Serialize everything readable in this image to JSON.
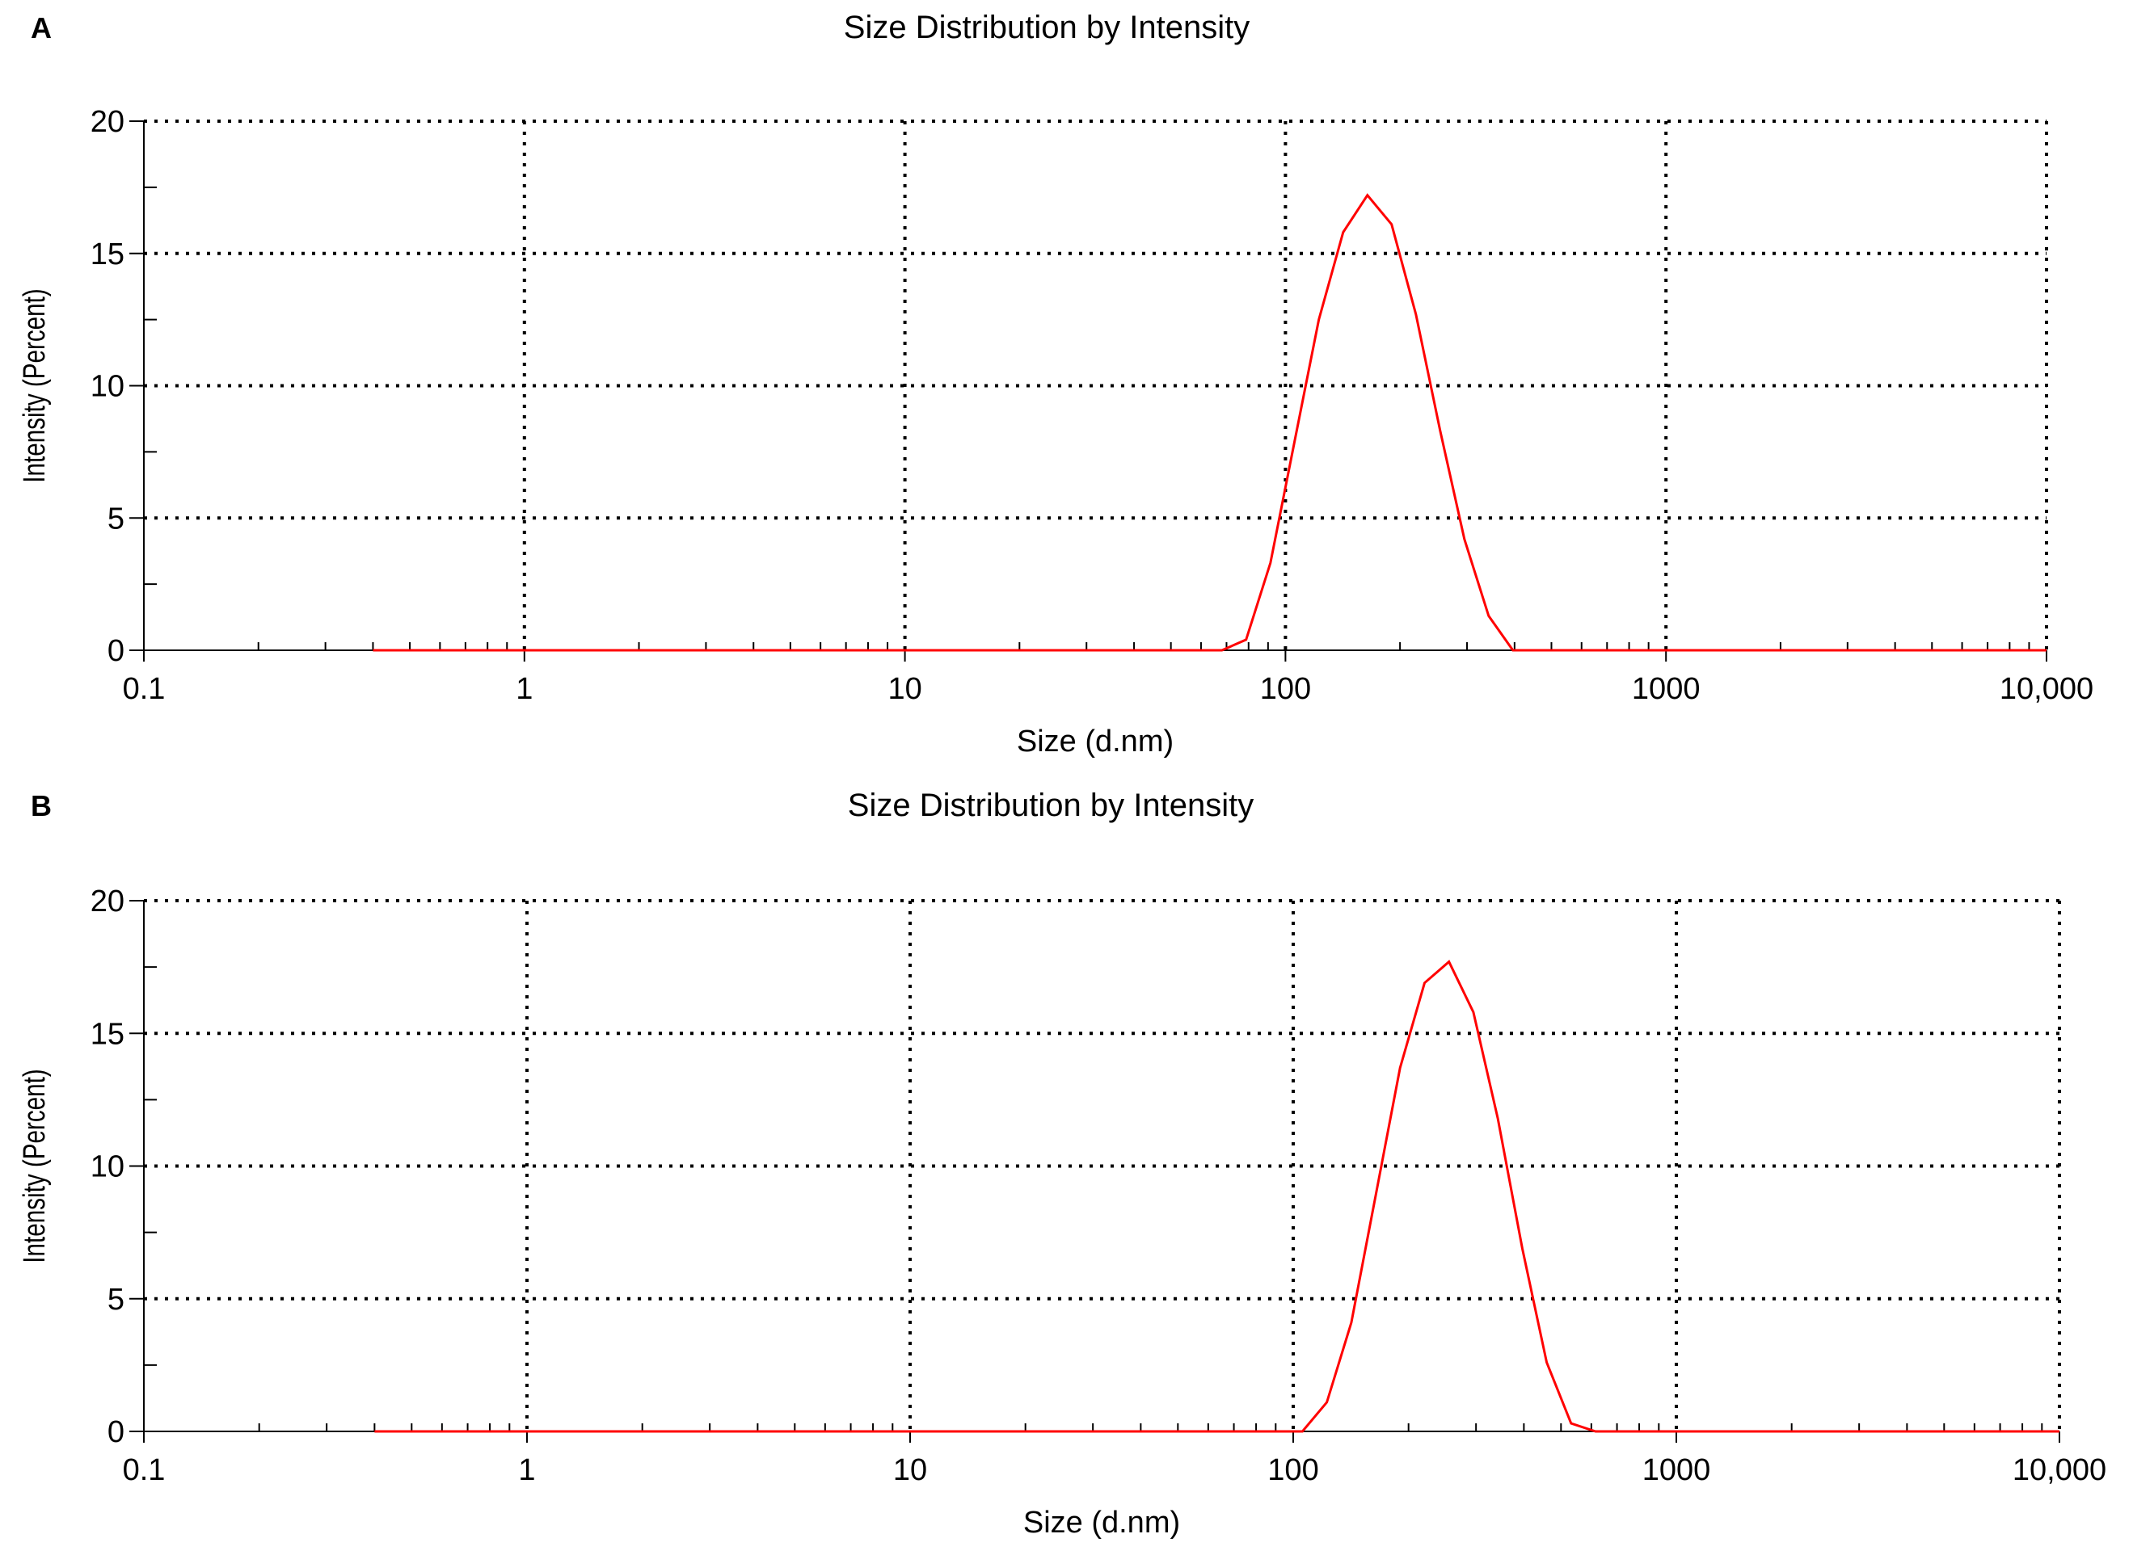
{
  "chart_data": [
    {
      "type": "line",
      "panel_label": "A",
      "title": "Size Distribution by Intensity",
      "xlabel": "Size (d.nm)",
      "ylabel": "Intensity (Percent)",
      "x_scale": "log",
      "xlim": [
        0.1,
        10000
      ],
      "ylim": [
        0,
        20
      ],
      "x_ticks": [
        0.1,
        1,
        10,
        100,
        1000,
        10000
      ],
      "x_tick_labels": [
        "0.1",
        "1",
        "10",
        "100",
        "1000",
        "10,000"
      ],
      "y_ticks": [
        0,
        5,
        10,
        15,
        20
      ],
      "y_tick_labels": [
        "0",
        "5",
        "10",
        "15",
        "20"
      ],
      "grid": "dotted",
      "line_color": "#ff0000",
      "series": [
        {
          "x": [
            0.4,
            68.1,
            78.8,
            91.3,
            105.7,
            122.4,
            141.8,
            164.2,
            190.1,
            220.2,
            255.0,
            295.3,
            342.0,
            396.1,
            10000
          ],
          "y": [
            0,
            0,
            0.4,
            3.3,
            7.9,
            12.5,
            15.8,
            17.2,
            16.1,
            12.7,
            8.3,
            4.2,
            1.3,
            0,
            0
          ]
        }
      ]
    },
    {
      "type": "line",
      "panel_label": "B",
      "title": "Size Distribution by Intensity",
      "xlabel": "Size (d.nm)",
      "ylabel": "Intensity (Percent)",
      "x_scale": "log",
      "xlim": [
        0.1,
        10000
      ],
      "ylim": [
        0,
        20
      ],
      "x_ticks": [
        0.1,
        1,
        10,
        100,
        1000,
        10000
      ],
      "x_tick_labels": [
        "0.1",
        "1",
        "10",
        "100",
        "1000",
        "10,000"
      ],
      "y_ticks": [
        0,
        5,
        10,
        15,
        20
      ],
      "y_tick_labels": [
        "0",
        "5",
        "10",
        "15",
        "20"
      ],
      "grid": "dotted",
      "line_color": "#ff0000",
      "series": [
        {
          "x": [
            0.4,
            105.7,
            122.4,
            141.8,
            164.2,
            190.1,
            220.2,
            255.0,
            295.3,
            342.0,
            396.1,
            458.7,
            531.2,
            615.1,
            10000
          ],
          "y": [
            0,
            0,
            1.1,
            4.1,
            8.9,
            13.7,
            16.9,
            17.7,
            15.8,
            11.8,
            6.9,
            2.6,
            0.3,
            0,
            0
          ]
        }
      ]
    }
  ]
}
